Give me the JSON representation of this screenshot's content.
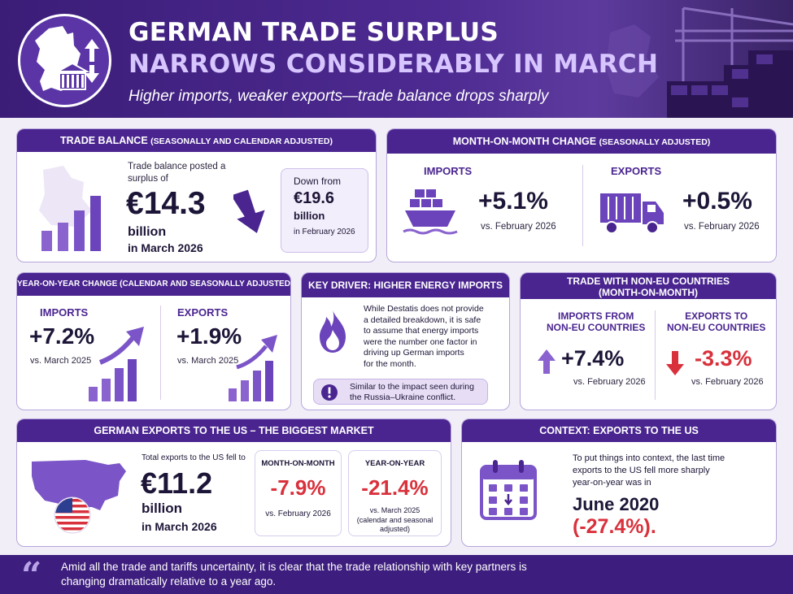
{
  "header": {
    "title_line1": "GERMAN TRADE SURPLUS",
    "title_line2": "NARROWS CONSIDERABLY IN MARCH",
    "subtitle": "Higher imports, weaker exports—trade balance drops sharply",
    "logo_icons": [
      "germany-map-icon",
      "bank-icon",
      "up-down-arrow-icon"
    ]
  },
  "trade_balance": {
    "title_main": "TRADE BALANCE",
    "title_note": "(SEASONALLY AND CALENDAR ADJUSTED)",
    "intro_line1": "Trade balance posted a",
    "intro_line2": "surplus of",
    "value": "€14.3",
    "unit": "billion",
    "period": "in March 2026",
    "prev_label": "Down from",
    "prev_value": "€19.6",
    "prev_unit": "billion",
    "prev_period": "in February 2026"
  },
  "mom": {
    "title_main": "MONTH-ON-MONTH CHANGE",
    "title_note": "(SEASONALLY ADJUSTED)",
    "imports_label": "IMPORTS",
    "imports_value": "+5.1%",
    "imports_note": "vs. February 2026",
    "exports_label": "EXPORTS",
    "exports_value": "+0.5%",
    "exports_note": "vs. February 2026"
  },
  "yoy": {
    "title": "YEAR-ON-YEAR CHANGE (CALENDAR AND SEASONALLY ADJUSTED)",
    "imports_label": "IMPORTS",
    "imports_value": "+7.2%",
    "imports_note": "vs. March 2025",
    "exports_label": "EXPORTS",
    "exports_value": "+1.9%",
    "exports_note": "vs. March 2025"
  },
  "key_driver": {
    "title": "KEY DRIVER: HIGHER ENERGY IMPORTS",
    "lines": [
      "While Destatis does not provide",
      "a detailed breakdown, it is safe",
      "to assume that energy imports",
      "were the number one factor in",
      "driving up German imports",
      "for the month."
    ],
    "note_lines": [
      "Similar to the impact seen during",
      "the Russia–Ukraine conflict."
    ]
  },
  "non_eu": {
    "title_line1": "TRADE WITH NON-EU COUNTRIES",
    "title_line2": "(MONTH-ON-MONTH)",
    "imports_label_1": "IMPORTS FROM",
    "imports_label_2": "NON-EU COUNTRIES",
    "imports_value": "+7.4%",
    "imports_note": "vs. February 2026",
    "exports_label_1": "EXPORTS TO",
    "exports_label_2": "NON-EU COUNTRIES",
    "exports_value": "-3.3%",
    "exports_note": "vs. February 2026"
  },
  "us_exports": {
    "title": "GERMAN EXPORTS TO THE US – THE BIGGEST MARKET",
    "intro": "Total exports to the US fell to",
    "value": "€11.2",
    "unit": "billion",
    "period": "in March 2026",
    "mom_label": "MONTH-ON-MONTH",
    "mom_value": "-7.9%",
    "mom_note": "vs. February 2026",
    "yoy_label": "YEAR-ON-YEAR",
    "yoy_value": "-21.4%",
    "yoy_note_1": "vs. March 2025",
    "yoy_note_2": "(calendar and seasonal",
    "yoy_note_3": "adjusted)"
  },
  "context": {
    "title": "CONTEXT: EXPORTS TO THE US",
    "line1": "To put things into context, the last time",
    "line2": "exports to the US fell more sharply",
    "line3": "year-on-year was in",
    "date": "June 2020",
    "value": "(-27.4%)."
  },
  "footer": {
    "quote_mark": "“",
    "line1": "Amid all the trade and tariffs uncertainty, it is clear that the trade relationship with key partners is",
    "line2": "changing dramatically relative to a year ago."
  },
  "colors": {
    "brand": "#4a2590",
    "accent": "#7b55c8",
    "negative": "#d9313c",
    "background": "#f1eef7"
  }
}
